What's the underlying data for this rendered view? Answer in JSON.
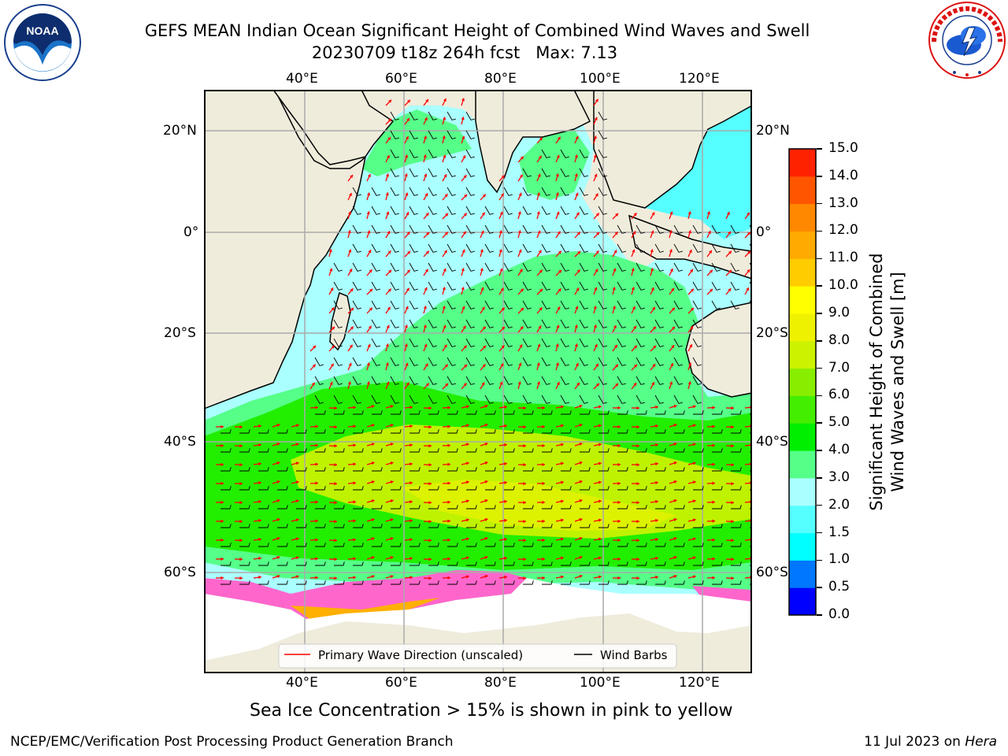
{
  "header": {
    "title_line1": "GEFS MEAN Indian Ocean Significant Height of Combined Wind Waves and Swell",
    "title_line2": "20230709 t18z 264h fcst   Max: 7.13"
  },
  "logos": {
    "noaa_text": "NOAA",
    "noaa_ring": "NATIONAL OCEANIC AND ATMOSPHERIC ADMINISTRATION · U.S. DEPARTMENT OF COMMERCE",
    "nws_ring": "NATIONAL WEATHER SERVICE"
  },
  "map": {
    "lon_labels": [
      "40°E",
      "60°E",
      "80°E",
      "100°E",
      "120°E"
    ],
    "lat_labels": [
      "20°N",
      "0°",
      "20°S",
      "40°S",
      "60°S"
    ],
    "lat_labels_left": [
      "20°N",
      "0°",
      "20°S",
      "40°S",
      "60°S"
    ],
    "lat_labels_right": [
      "20°N",
      "0°",
      "20°S",
      "40°S",
      "60°S"
    ],
    "legend": {
      "wave_direction": "Primary Wave Direction (unscaled)",
      "wind_barbs": "Wind Barbs"
    },
    "colors": {
      "land": "#efecdc",
      "ocean_low": "#aaffff",
      "ocean_mid": "#55ff88",
      "ocean_high": "#22ee00",
      "ocean_peak": "#ddf200",
      "wave_arrow": "#ff0000",
      "wind_barb": "#000000",
      "ice": "#ff66cc"
    }
  },
  "colorbar": {
    "label_line1": "Significant Height of Combined",
    "label_line2": "Wind Waves and Swell [m]",
    "ticks": [
      "0.0",
      "0.5",
      "1.0",
      "1.5",
      "2.0",
      "3.0",
      "4.0",
      "5.0",
      "6.0",
      "7.0",
      "8.0",
      "9.0",
      "10.0",
      "11.0",
      "12.0",
      "13.0",
      "14.0",
      "15.0"
    ],
    "colors": [
      "#0000ff",
      "#0077ff",
      "#00ffff",
      "#55ffff",
      "#aaffff",
      "#55ff88",
      "#00ee00",
      "#44ee00",
      "#88ee00",
      "#ccf200",
      "#eef200",
      "#ffff00",
      "#ffcc00",
      "#ffaa00",
      "#ff8800",
      "#ff5500",
      "#ff2200"
    ]
  },
  "footer": {
    "sea_ice_note": "Sea Ice Concentration > 15% is shown in pink to yellow",
    "branch": "NCEP/EMC/Verification Post Processing Product Generation Branch",
    "date": "11 Jul 2023 on ",
    "machine": "Hera"
  }
}
